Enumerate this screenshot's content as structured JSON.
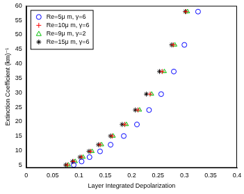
{
  "chart_data": {
    "type": "scatter",
    "x_label": "Layer Integrated Depolarization",
    "y_label": "Extinction Coefficient (km)⁻¹",
    "xlim": [
      0,
      0.4
    ],
    "xticks": [
      0,
      0.05,
      0.1,
      0.15,
      0.2,
      0.25,
      0.3,
      0.35,
      0.4
    ],
    "ylim": [
      4,
      60
    ],
    "yticks": [
      5,
      10,
      15,
      20,
      25,
      30,
      35,
      40,
      45,
      50,
      55,
      60
    ],
    "grid": false,
    "legend": "upper left",
    "series": [
      {
        "name": "Re=5μ m, γ=6",
        "color": "#0000ff",
        "marker": "circle",
        "x": [
          0.09,
          0.105,
          0.12,
          0.14,
          0.16,
          0.185,
          0.21,
          0.233,
          0.256,
          0.28,
          0.3,
          0.326
        ],
        "values": [
          5,
          6.2,
          7.7,
          9.7,
          12,
          15,
          19,
          24,
          29.5,
          37.3,
          46.5,
          58
        ]
      },
      {
        "name": "Re=10μ m, γ=6",
        "color": "#ff0000",
        "marker": "plus",
        "x": [
          0.078,
          0.09,
          0.105,
          0.122,
          0.14,
          0.163,
          0.187,
          0.212,
          0.235,
          0.258,
          0.279,
          0.303
        ],
        "values": [
          5,
          6.2,
          7.7,
          9.7,
          12,
          15,
          19,
          24,
          29.5,
          37.3,
          46.5,
          58
        ]
      },
      {
        "name": "Re=9μ m, γ=2",
        "color": "#00bf00",
        "marker": "triangle",
        "x": [
          0.08,
          0.093,
          0.108,
          0.125,
          0.143,
          0.165,
          0.19,
          0.215,
          0.238,
          0.262,
          0.282,
          0.306
        ],
        "values": [
          5,
          6.2,
          7.7,
          9.7,
          12,
          15,
          19,
          24,
          29.5,
          37.3,
          46.5,
          58
        ]
      },
      {
        "name": "Re=15μ m, γ=6",
        "color": "#000000",
        "marker": "star",
        "x": [
          0.075,
          0.088,
          0.102,
          0.119,
          0.137,
          0.16,
          0.182,
          0.207,
          0.228,
          0.253,
          0.276,
          0.302
        ],
        "values": [
          5,
          6.2,
          7.7,
          9.7,
          12,
          15,
          19,
          24,
          29.5,
          37.3,
          46.5,
          58
        ]
      }
    ]
  }
}
